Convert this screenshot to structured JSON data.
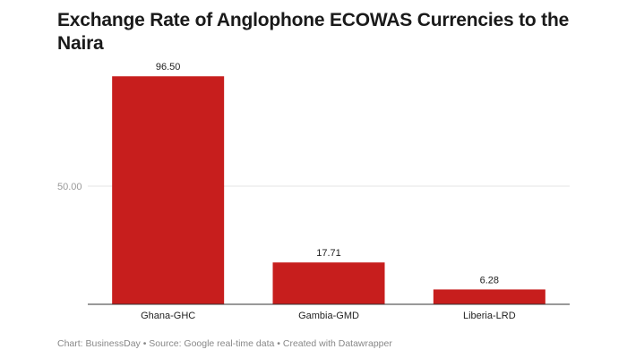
{
  "chart_data": {
    "type": "bar",
    "title": "Exchange Rate of Anglophone ECOWAS Currencies to the Naira",
    "categories": [
      "Ghana-GHC",
      "Gambia-GMD",
      "Liberia-LRD"
    ],
    "values": [
      96.5,
      17.71,
      6.28
    ],
    "value_labels": [
      "96.50",
      "17.71",
      "6.28"
    ],
    "yticks": [
      50
    ],
    "ytick_labels": [
      "50.00"
    ],
    "ylim": [
      0,
      100
    ],
    "xlabel": "",
    "ylabel": "",
    "grid": true,
    "bar_color": "#c71e1d"
  },
  "footer": {
    "text": "Chart: BusinessDay • Source: Google real-time data • Created with Datawrapper"
  },
  "colors": {
    "bar": "#c71e1d",
    "gridline": "#e6e6e6",
    "axis": "#333333",
    "tick_text": "#999999",
    "label_text": "#222222"
  }
}
